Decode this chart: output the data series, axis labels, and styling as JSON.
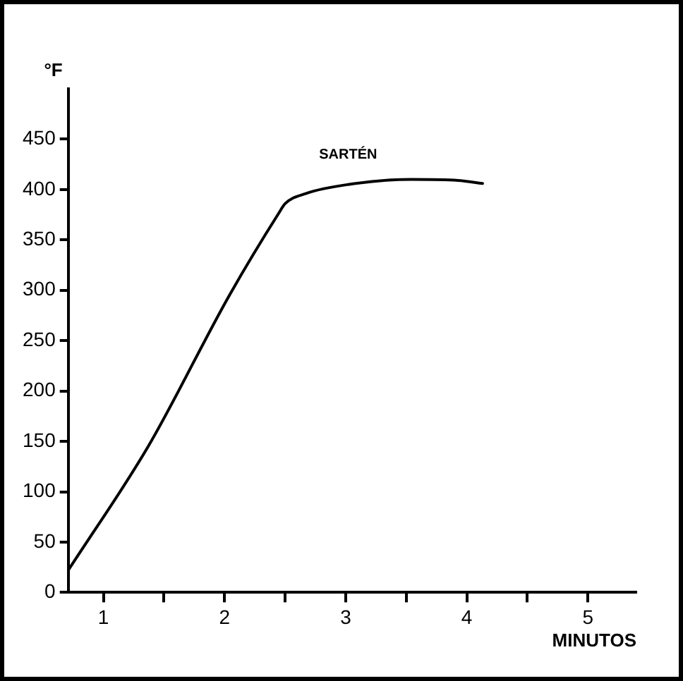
{
  "chart_data": {
    "type": "line",
    "xlabel": "MINUTOS",
    "ylabel": "°F",
    "series": [
      {
        "name": "SARTÉN",
        "color": "#000000",
        "x": [
          0.71,
          1.37,
          2.04,
          2.45,
          2.5,
          2.67,
          3.02,
          3.54,
          3.93,
          4.13
        ],
        "values": [
          22,
          145,
          295,
          377,
          386,
          396,
          405,
          410,
          409,
          406
        ]
      }
    ],
    "xlim": [
      0.71,
      5.4
    ],
    "xticks": [
      1,
      {
        "value": 1.5,
        "label": null
      },
      2,
      {
        "value": 2.5,
        "label": null
      },
      3,
      {
        "value": 3.5,
        "label": null
      },
      4,
      {
        "value": 4.5,
        "label": null
      },
      5
    ],
    "ylim": [
      0,
      500
    ],
    "yticks": [
      0,
      50,
      100,
      150,
      200,
      250,
      300,
      350,
      400,
      450
    ],
    "grid": false,
    "legend": false,
    "marker": "none",
    "line_style": "solid"
  }
}
